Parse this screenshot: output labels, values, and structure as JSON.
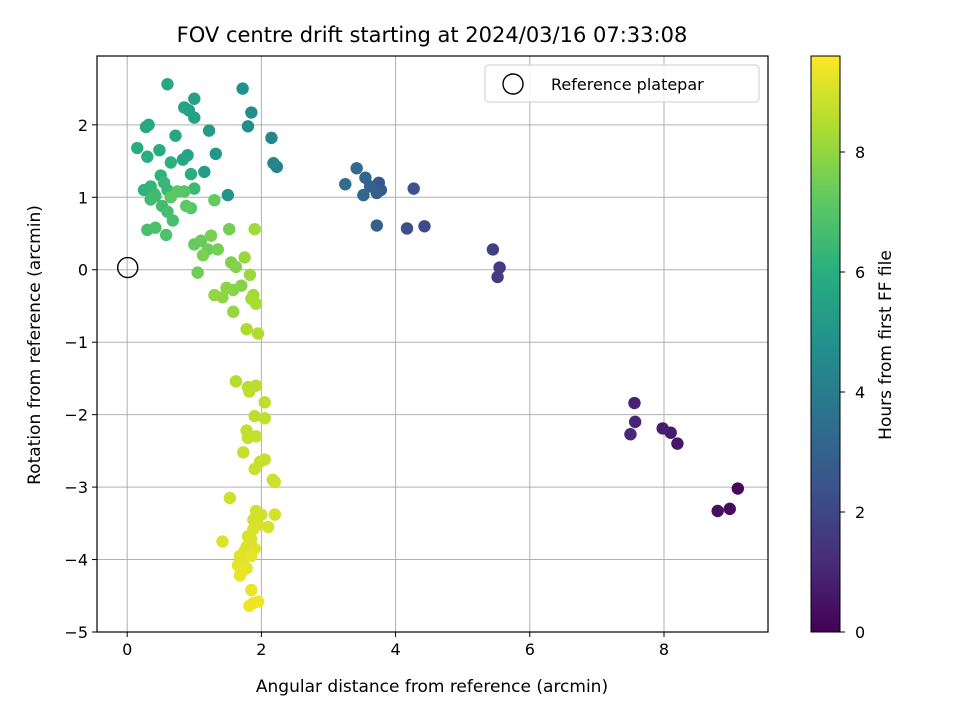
{
  "chart_data": {
    "type": "scatter",
    "title": "FOV centre drift starting at 2024/03/16 07:33:08",
    "xlabel": "Angular distance from reference (arcmin)",
    "ylabel": "Rotation from reference (arcmin)",
    "xlim": [
      -0.45,
      9.55
    ],
    "ylim": [
      -5.0,
      2.95
    ],
    "xticks": [
      0,
      2,
      4,
      6,
      8
    ],
    "yticks": [
      -5,
      -4,
      -3,
      -2,
      -1,
      0,
      1,
      2
    ],
    "grid": true,
    "legend": {
      "position": "top-right",
      "entries": [
        "Reference platepar"
      ]
    },
    "colorbar": {
      "label": "Hours from first FF file",
      "range": [
        0,
        9.6
      ],
      "ticks": [
        0,
        2,
        4,
        6,
        8
      ],
      "colormap": "viridis"
    },
    "reference_point": {
      "x": 0,
      "y": 0,
      "label": "Reference platepar"
    },
    "points": [
      [
        9.1,
        -3.02,
        0.2
      ],
      [
        8.98,
        -3.3,
        0.3
      ],
      [
        8.8,
        -3.33,
        0.4
      ],
      [
        8.2,
        -2.4,
        0.6
      ],
      [
        8.1,
        -2.25,
        0.7
      ],
      [
        7.98,
        -2.19,
        0.8
      ],
      [
        7.56,
        -1.84,
        0.9
      ],
      [
        7.57,
        -2.1,
        1.0
      ],
      [
        7.5,
        -2.27,
        1.1
      ],
      [
        5.55,
        0.03,
        1.6
      ],
      [
        5.52,
        -0.1,
        1.7
      ],
      [
        5.45,
        0.28,
        1.8
      ],
      [
        4.43,
        0.6,
        2.2
      ],
      [
        4.17,
        0.57,
        2.3
      ],
      [
        4.27,
        1.12,
        2.4
      ],
      [
        3.75,
        1.2,
        2.6
      ],
      [
        3.78,
        1.1,
        2.7
      ],
      [
        3.72,
        1.06,
        2.8
      ],
      [
        3.72,
        0.61,
        2.9
      ],
      [
        3.62,
        1.15,
        3.0
      ],
      [
        3.55,
        1.27,
        3.1
      ],
      [
        3.52,
        1.03,
        3.2
      ],
      [
        3.42,
        1.4,
        3.3
      ],
      [
        3.25,
        1.18,
        3.4
      ],
      [
        2.23,
        1.42,
        4.2
      ],
      [
        2.18,
        1.47,
        4.3
      ],
      [
        2.15,
        1.82,
        4.4
      ],
      [
        1.85,
        2.17,
        4.6
      ],
      [
        1.8,
        1.98,
        4.7
      ],
      [
        1.72,
        2.5,
        4.8
      ],
      [
        1.5,
        1.03,
        5.0
      ],
      [
        1.32,
        1.6,
        5.1
      ],
      [
        1.22,
        1.92,
        5.2
      ],
      [
        1.15,
        1.35,
        5.3
      ],
      [
        1.0,
        2.36,
        5.4
      ],
      [
        1.0,
        2.1,
        5.45
      ],
      [
        0.92,
        2.2,
        5.5
      ],
      [
        0.85,
        2.24,
        5.55
      ],
      [
        0.9,
        1.58,
        5.6
      ],
      [
        0.83,
        1.52,
        5.65
      ],
      [
        0.72,
        1.85,
        5.7
      ],
      [
        0.6,
        2.56,
        5.75
      ],
      [
        0.32,
        2.0,
        5.8
      ],
      [
        0.28,
        1.97,
        5.85
      ],
      [
        0.48,
        1.65,
        5.9
      ],
      [
        0.15,
        1.68,
        5.95
      ],
      [
        0.3,
        1.56,
        6.0
      ],
      [
        0.95,
        1.32,
        6.05
      ],
      [
        0.65,
        1.48,
        6.1
      ],
      [
        0.5,
        1.3,
        6.15
      ],
      [
        0.25,
        1.1,
        6.2
      ],
      [
        0.35,
        1.15,
        6.25
      ],
      [
        0.4,
        1.05,
        6.3
      ],
      [
        0.6,
        1.1,
        6.35
      ],
      [
        0.55,
        1.2,
        6.4
      ],
      [
        1.0,
        1.12,
        6.45
      ],
      [
        0.42,
        1.02,
        6.5
      ],
      [
        0.35,
        0.97,
        6.55
      ],
      [
        0.52,
        0.88,
        6.6
      ],
      [
        0.6,
        0.8,
        6.65
      ],
      [
        0.68,
        0.68,
        6.7
      ],
      [
        0.3,
        0.55,
        6.75
      ],
      [
        0.42,
        0.58,
        6.8
      ],
      [
        0.58,
        0.48,
        6.85
      ],
      [
        0.85,
        1.08,
        7.0
      ],
      [
        0.95,
        0.85,
        7.05
      ],
      [
        0.75,
        1.08,
        7.1
      ],
      [
        0.65,
        1.0,
        7.15
      ],
      [
        0.88,
        0.88,
        7.2
      ],
      [
        1.3,
        0.96,
        7.25
      ],
      [
        1.0,
        0.35,
        7.3
      ],
      [
        1.1,
        0.4,
        7.35
      ],
      [
        1.2,
        0.28,
        7.4
      ],
      [
        1.05,
        -0.04,
        7.45
      ],
      [
        1.52,
        0.56,
        7.5
      ],
      [
        1.35,
        0.28,
        7.55
      ],
      [
        1.25,
        0.47,
        7.6
      ],
      [
        1.13,
        0.2,
        7.65
      ],
      [
        1.55,
        0.1,
        7.7
      ],
      [
        1.62,
        0.04,
        7.75
      ],
      [
        1.7,
        -0.22,
        7.8
      ],
      [
        1.58,
        -0.28,
        7.85
      ],
      [
        1.48,
        -0.25,
        7.9
      ],
      [
        1.42,
        -0.38,
        7.95
      ],
      [
        1.3,
        -0.35,
        8.0
      ],
      [
        1.58,
        -0.58,
        8.05
      ],
      [
        1.75,
        0.17,
        8.1
      ],
      [
        1.83,
        -0.07,
        8.15
      ],
      [
        1.9,
        0.56,
        8.2
      ],
      [
        1.88,
        -0.35,
        8.25
      ],
      [
        1.85,
        -0.4,
        8.3
      ],
      [
        1.92,
        -0.47,
        8.35
      ],
      [
        1.78,
        -0.82,
        8.4
      ],
      [
        1.95,
        -0.88,
        8.45
      ],
      [
        1.62,
        -1.54,
        8.5
      ],
      [
        1.8,
        -1.62,
        8.55
      ],
      [
        1.92,
        -1.6,
        8.6
      ],
      [
        1.82,
        -1.68,
        8.62
      ],
      [
        2.05,
        -1.83,
        8.64
      ],
      [
        1.9,
        -2.02,
        8.66
      ],
      [
        2.05,
        -2.05,
        8.68
      ],
      [
        1.78,
        -2.22,
        8.7
      ],
      [
        1.8,
        -2.32,
        8.72
      ],
      [
        1.92,
        -2.3,
        8.74
      ],
      [
        1.73,
        -2.52,
        8.76
      ],
      [
        1.98,
        -2.65,
        8.78
      ],
      [
        2.05,
        -2.62,
        8.8
      ],
      [
        1.9,
        -2.75,
        8.82
      ],
      [
        2.17,
        -2.9,
        8.84
      ],
      [
        2.2,
        -2.93,
        8.86
      ],
      [
        1.53,
        -3.15,
        8.88
      ],
      [
        1.92,
        -3.33,
        8.9
      ],
      [
        1.95,
        -3.4,
        8.92
      ],
      [
        2.0,
        -3.38,
        8.94
      ],
      [
        1.88,
        -3.45,
        8.96
      ],
      [
        2.2,
        -3.38,
        8.98
      ],
      [
        2.1,
        -3.55,
        9.0
      ],
      [
        1.95,
        -3.52,
        9.02
      ],
      [
        1.88,
        -3.58,
        9.04
      ],
      [
        1.8,
        -3.68,
        9.06
      ],
      [
        1.85,
        -3.72,
        9.08
      ],
      [
        1.42,
        -3.75,
        9.1
      ],
      [
        1.78,
        -3.82,
        9.12
      ],
      [
        1.75,
        -3.88,
        9.14
      ],
      [
        1.9,
        -3.85,
        9.16
      ],
      [
        1.68,
        -3.95,
        9.18
      ],
      [
        1.72,
        -4.02,
        9.2
      ],
      [
        1.85,
        -3.95,
        9.22
      ],
      [
        1.65,
        -4.08,
        9.24
      ],
      [
        1.78,
        -4.12,
        9.26
      ],
      [
        1.7,
        -4.18,
        9.28
      ],
      [
        1.68,
        -4.22,
        9.3
      ],
      [
        1.85,
        -4.42,
        9.32
      ],
      [
        1.88,
        -4.6,
        9.34
      ],
      [
        1.95,
        -4.58,
        9.36
      ],
      [
        1.82,
        -4.64,
        9.38
      ]
    ]
  }
}
